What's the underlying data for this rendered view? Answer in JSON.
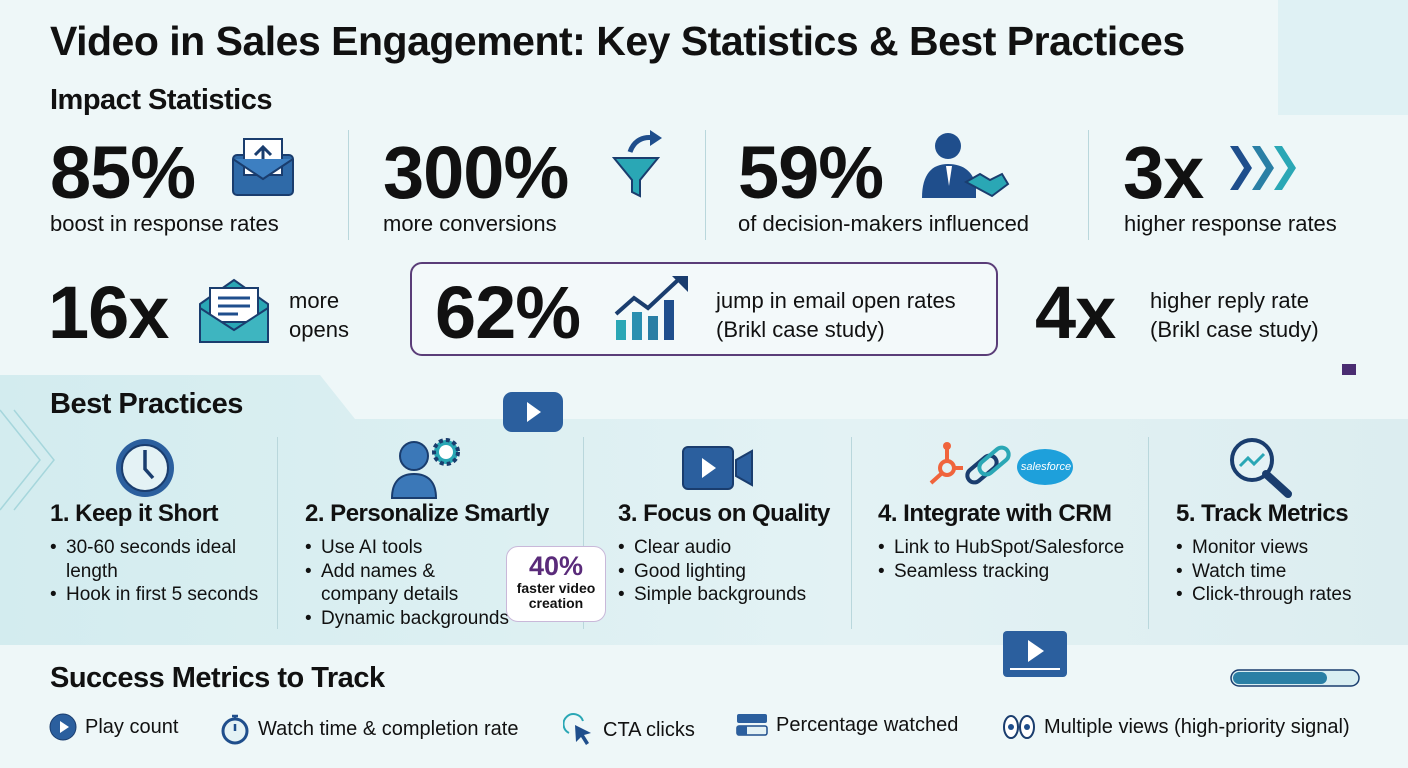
{
  "title": "Video in Sales Engagement: Key Statistics & Best Practices",
  "impact": {
    "heading": "Impact Statistics",
    "stats": [
      {
        "value": "85%",
        "label": "boost in response rates",
        "icon": "envelope-upload-icon"
      },
      {
        "value": "300%",
        "label": "more conversions",
        "icon": "funnel-icon"
      },
      {
        "value": "59%",
        "label": "of decision-makers influenced",
        "icon": "handshake-icon"
      },
      {
        "value": "3x",
        "label": "higher response rates",
        "icon": "chevrons-icon"
      },
      {
        "value": "16x",
        "label_line1": "more",
        "label_line2": "opens",
        "icon": "open-envelope-icon"
      },
      {
        "value": "62%",
        "label_line1": "jump in email open rates",
        "label_line2": "(Brikl case study)",
        "icon": "growth-chart-icon"
      },
      {
        "value": "4x",
        "label_line1": "higher reply rate",
        "label_line2": "(Brikl case study)"
      }
    ]
  },
  "best_practices": {
    "heading": "Best Practices",
    "items": [
      {
        "title": "1. Keep it Short",
        "icon": "clock-icon",
        "bullets": [
          "30-60 seconds ideal length",
          "Hook in first 5 seconds"
        ]
      },
      {
        "title": "2. Personalize Smartly",
        "icon": "person-ai-icon",
        "bullets": [
          "Use AI tools",
          "Add names & company details",
          "Dynamic backgrounds"
        ]
      },
      {
        "title": "3. Focus on Quality",
        "icon": "video-camera-icon",
        "bullets": [
          "Clear audio",
          "Good lighting",
          "Simple backgrounds"
        ]
      },
      {
        "title": "4. Integrate with CRM",
        "icon": "crm-link-icon",
        "bullets": [
          "Link to HubSpot/Salesforce",
          "Seamless tracking"
        ]
      },
      {
        "title": "5. Track Metrics",
        "icon": "analytics-magnifier-icon",
        "bullets": [
          "Monitor views",
          "Watch time",
          "Click-through rates"
        ]
      }
    ],
    "callout": {
      "value": "40%",
      "text": "faster video creation"
    },
    "crm_logo_text": "salesforce"
  },
  "success_metrics": {
    "heading": "Success Metrics to Track",
    "items": [
      {
        "label": "Play count",
        "icon": "play-icon"
      },
      {
        "label": "Watch time & completion rate",
        "icon": "stopwatch-icon"
      },
      {
        "label": "CTA clicks",
        "icon": "cursor-click-icon"
      },
      {
        "label": "Percentage watched",
        "icon": "progress-icon"
      },
      {
        "label": "Multiple views (high-priority signal)",
        "icon": "eyes-icon"
      }
    ]
  },
  "colors": {
    "navy": "#1f4e8c",
    "teal": "#2aa7b5",
    "purple": "#5a2b7a",
    "background": "#eef7f8"
  }
}
